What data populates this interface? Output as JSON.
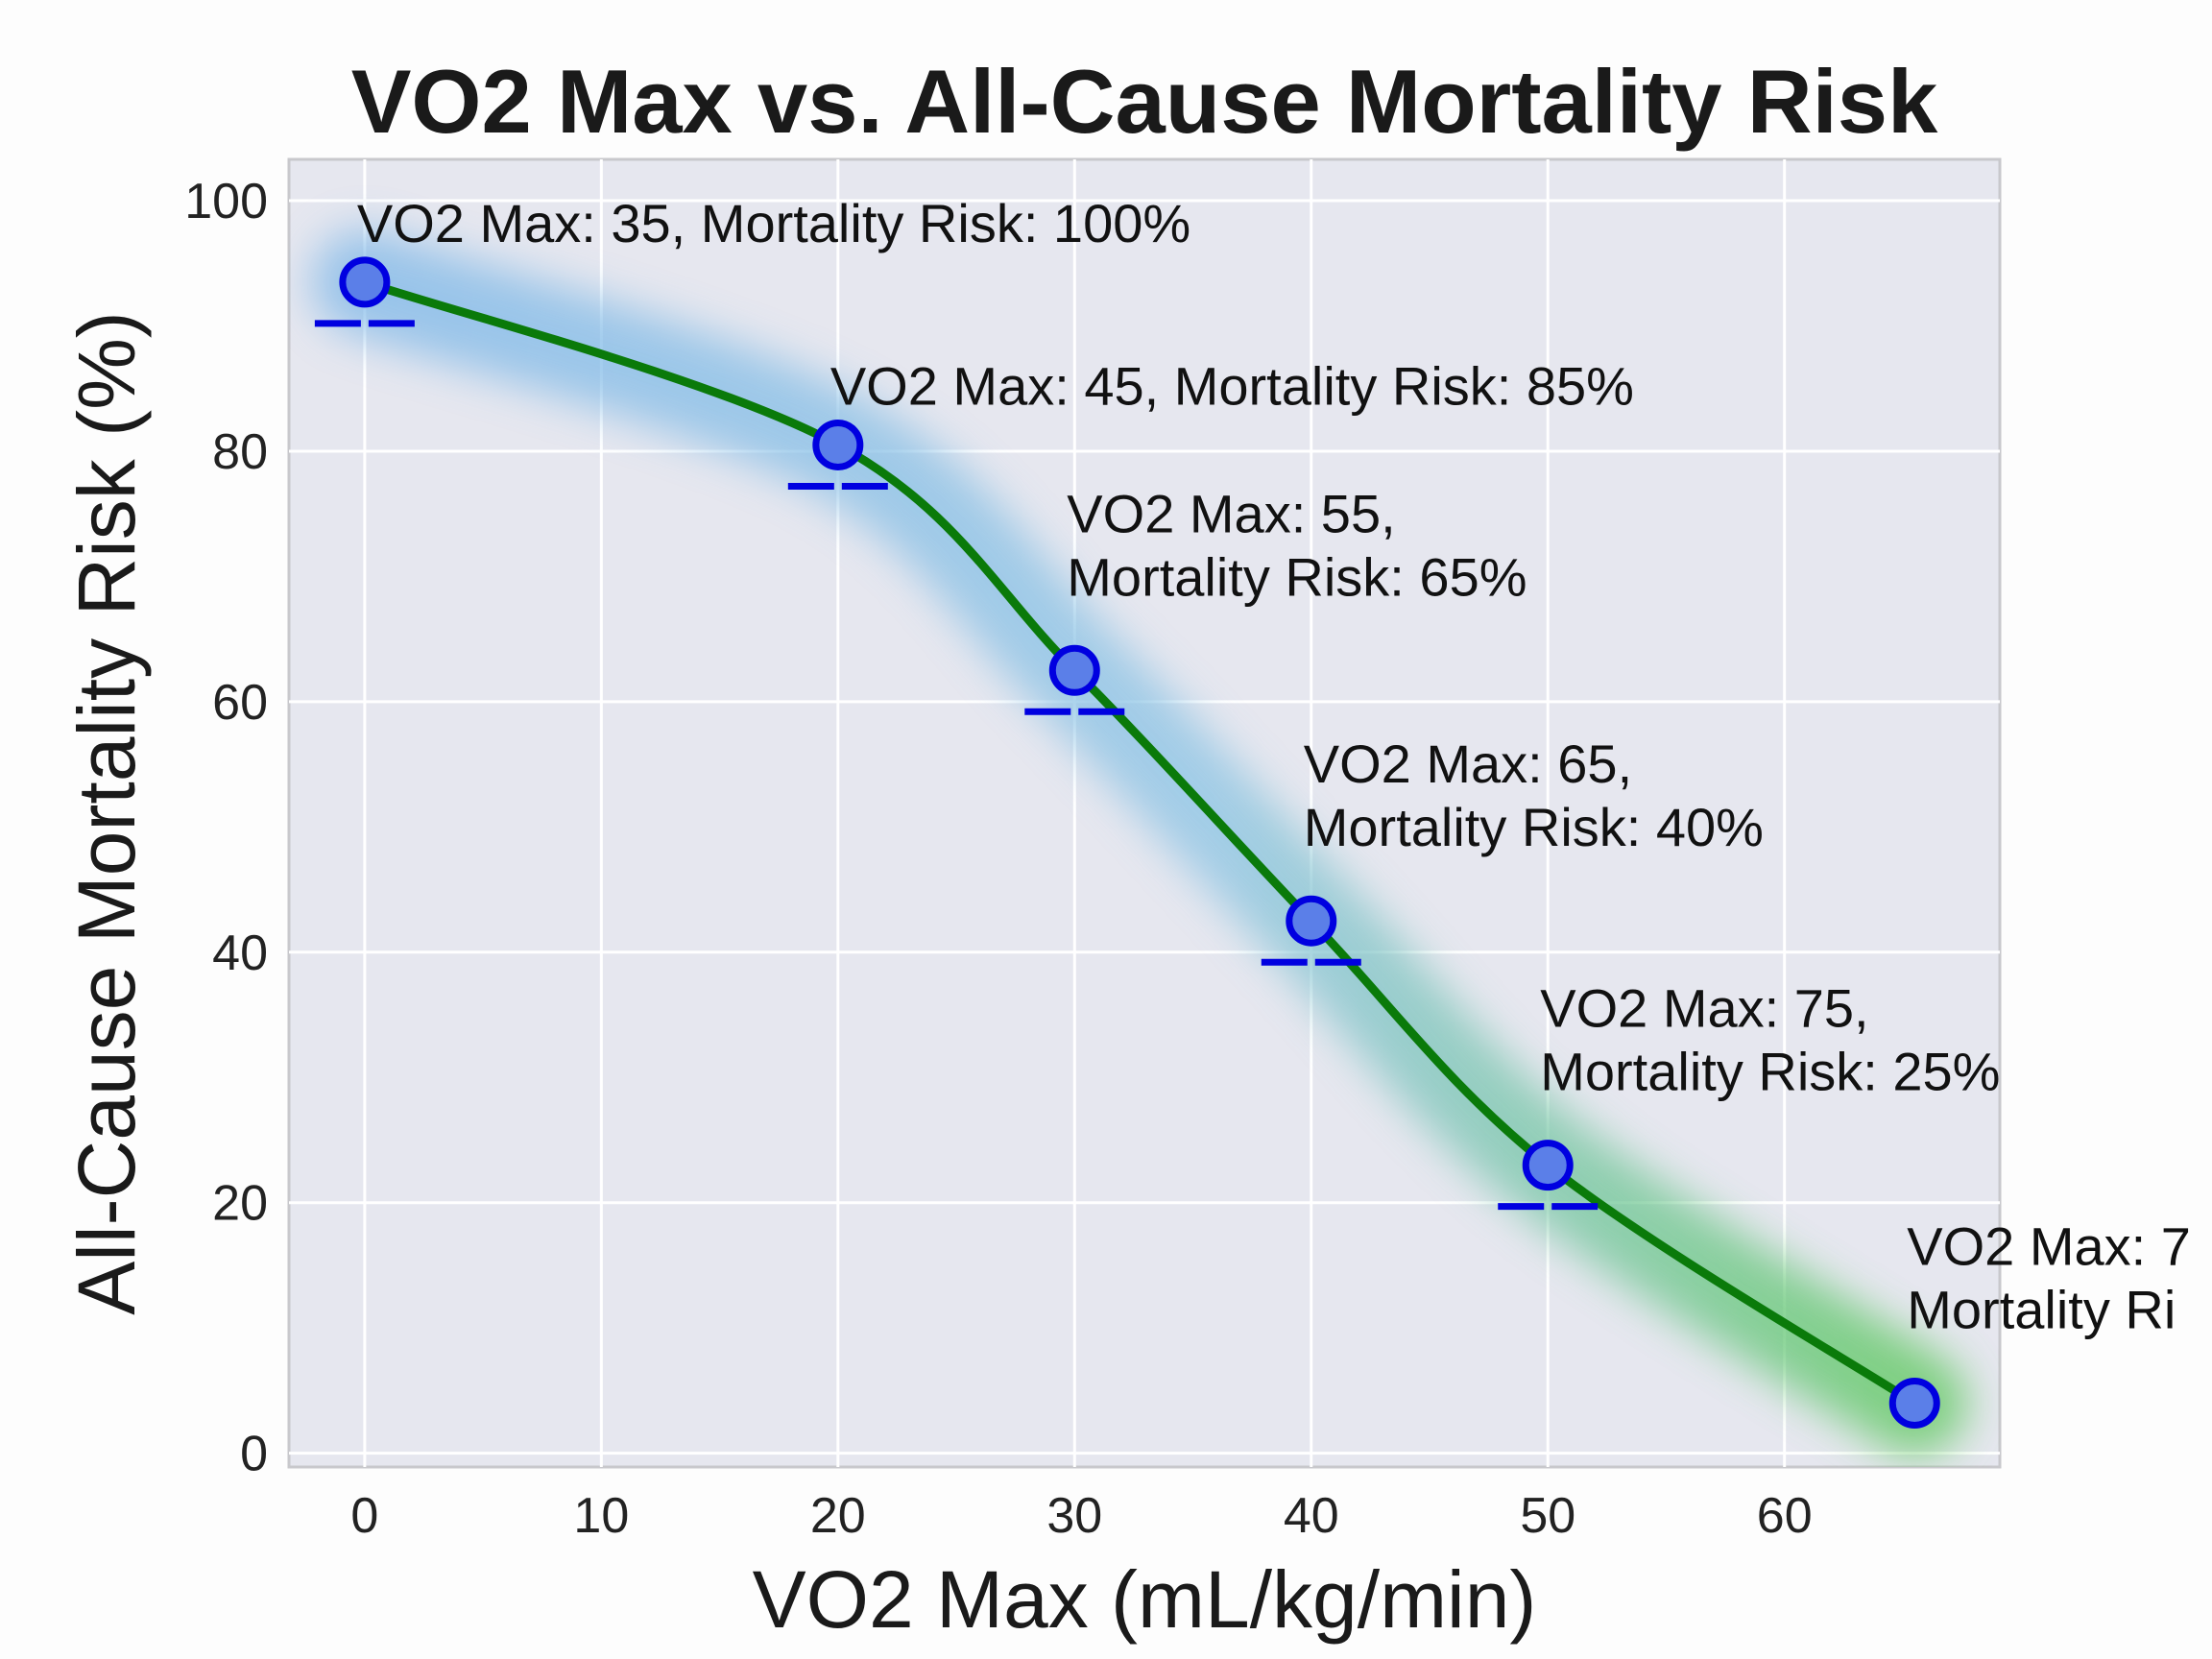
{
  "chart_data": {
    "type": "line",
    "title": "VO2 Max vs. All-Cause Mortality Risk",
    "xlabel": "VO2 Max (mL/kg/min)",
    "ylabel": "All-Cause Mortality Risk (%)",
    "xlim": [
      -3.2,
      69.1
    ],
    "ylim": [
      -1.1,
      103.3
    ],
    "xticks": [
      0,
      10,
      20,
      30,
      40,
      50,
      60
    ],
    "yticks": [
      0,
      20,
      40,
      60,
      80,
      100
    ],
    "grid": true,
    "legend": "none",
    "x": [
      0,
      20,
      30,
      40,
      50,
      65.5
    ],
    "y": [
      93.5,
      80.5,
      62.5,
      42.5,
      23,
      4
    ],
    "error_bars": [
      true,
      true,
      true,
      true,
      true,
      false
    ],
    "annotations": [
      [
        "VO2 Max: 35, Mortality Risk: 100%"
      ],
      [
        "VO2 Max: 45, Mortality Risk: 85%"
      ],
      [
        "VO2 Max: 55,",
        "Mortality Risk: 65%"
      ],
      [
        "VO2 Max: 65,",
        "Mortality Risk: 40%"
      ],
      [
        "VO2 Max: 75,",
        "Mortality Risk: 25%"
      ],
      [
        "VO2 Max: 7",
        "Mortality Ri"
      ]
    ],
    "colors": {
      "line": "#0a7a0a",
      "marker_fill": "#5b7fe8",
      "marker_edge": "#0000e0",
      "band_start": "#7fb8e8",
      "band_end": "#5cc85c",
      "plot_bg": "#e6e7ef",
      "grid": "#ffffff"
    }
  }
}
